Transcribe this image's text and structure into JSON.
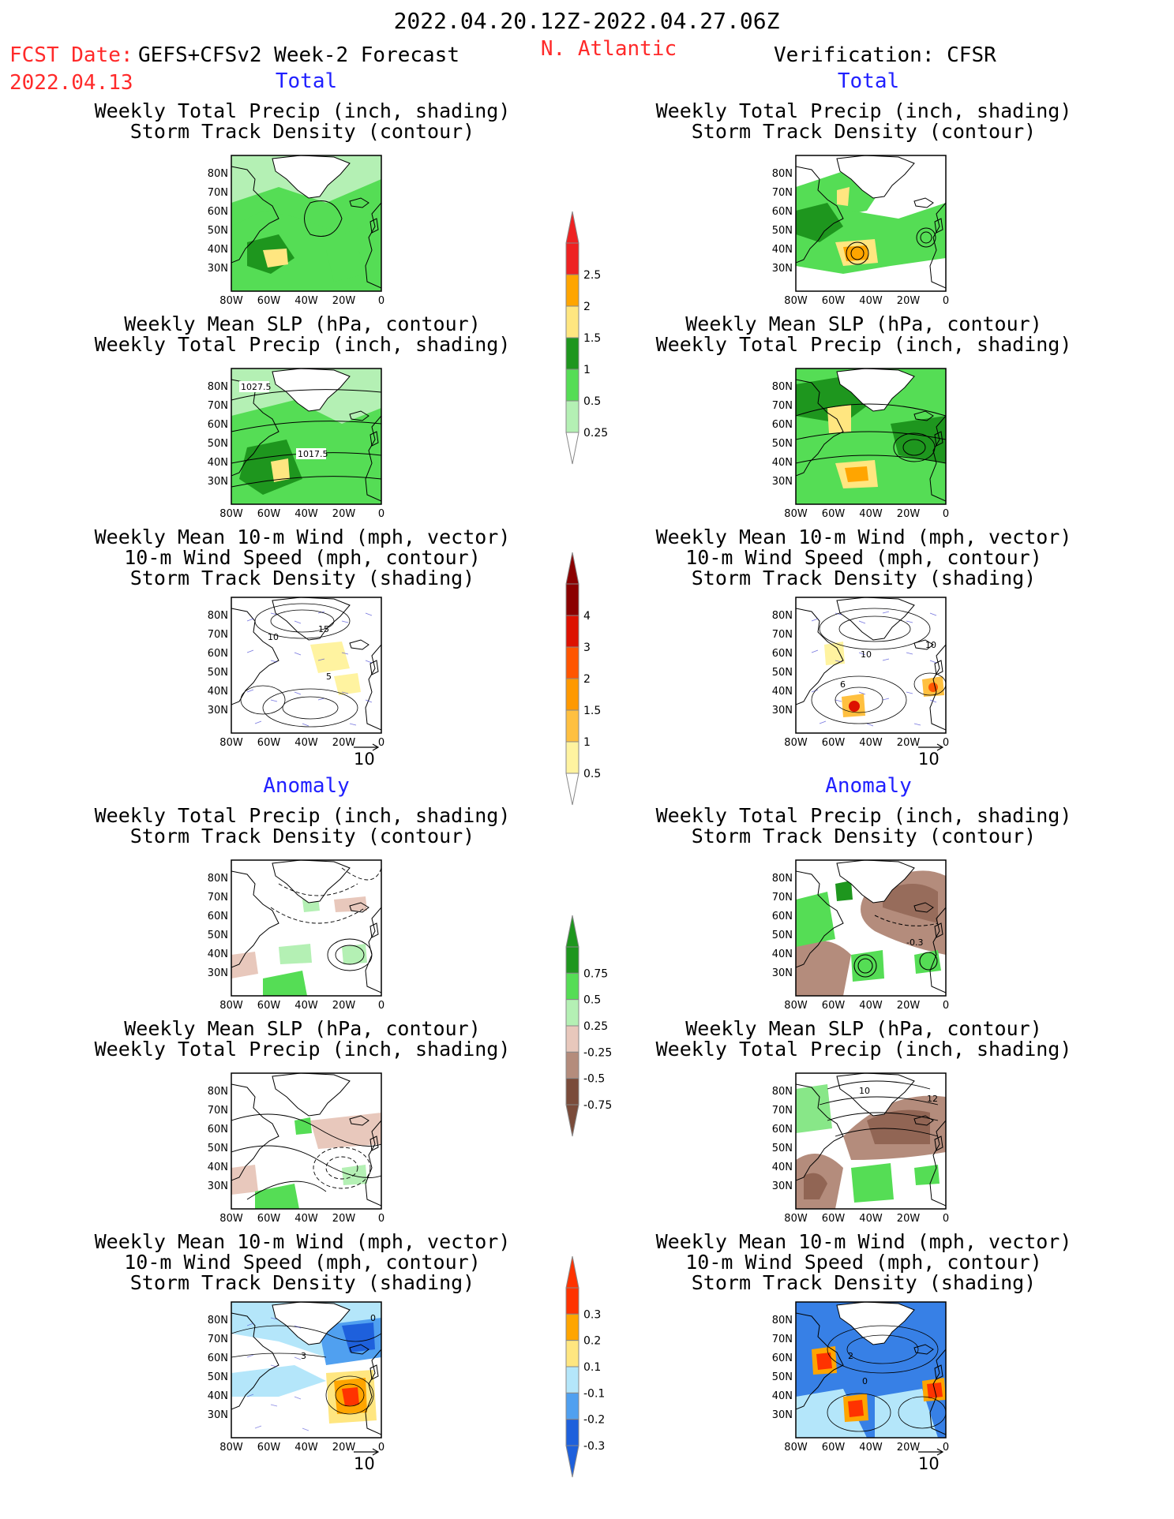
{
  "header": {
    "period": "2022.04.20.12Z-2022.04.27.06Z",
    "region": "N. Atlantic",
    "fcst_label": "FCST Date: GEFS+CFSv2 Week-2 Forecast",
    "fcst_date": "2022.04.13",
    "verif_label": "Verification: CFSR"
  },
  "sections": {
    "total": "Total",
    "anomaly": "Anomaly"
  },
  "panel_titles": {
    "precip_storm": [
      "Weekly Total Precip (inch, shading)",
      "Storm Track Density (contour)"
    ],
    "slp_precip": [
      "Weekly Mean SLP (hPa, contour)",
      "Weekly Total Precip (inch, shading)"
    ],
    "wind_storm": [
      "Weekly Mean 10-m Wind (mph, vector)",
      "10-m Wind Speed (mph, contour)",
      "Storm Track Density (shading)"
    ]
  },
  "axes": {
    "lat_ticks": [
      "80N",
      "70N",
      "60N",
      "50N",
      "40N",
      "30N"
    ],
    "lon_ticks": [
      "80W",
      "60W",
      "40W",
      "20W",
      "0"
    ]
  },
  "reference_vector": "10",
  "contour_labels": {
    "fcst_total_slp_1": "1027.5",
    "fcst_total_slp_2": "1017.5",
    "fcst_total_wind_1": "10",
    "fcst_total_wind_2": "15",
    "fcst_total_wind_3": "5",
    "verif_total_wind_1": "10",
    "verif_total_wind_2": "10",
    "verif_total_wind_3": "6",
    "verif_anom_precip_1": "-0.3",
    "verif_anom_slp_1": "10",
    "verif_anom_slp_2": "12",
    "fcst_anom_wind_1": "0",
    "fcst_anom_wind_2": "3",
    "verif_anom_wind_1": "2",
    "verif_anom_wind_2": "0"
  },
  "colorbars": {
    "precip_total": {
      "labels": [
        "2.5",
        "2",
        "1.5",
        "1",
        "0.5",
        "0.25"
      ],
      "colors": [
        "#ee2222",
        "#ffa500",
        "#ffe680",
        "#1e961e",
        "#55dd55",
        "#b4f0b4"
      ]
    },
    "storm_total": {
      "labels": [
        "4",
        "3",
        "2",
        "1.5",
        "1",
        "0.5"
      ],
      "colors": [
        "#8b0000",
        "#dd1100",
        "#ff5500",
        "#ff9900",
        "#ffc040",
        "#fff3a0"
      ]
    },
    "precip_anom": {
      "labels": [
        "0.75",
        "0.5",
        "0.25",
        "-0.25",
        "-0.5",
        "-0.75"
      ],
      "colors": [
        "#1e961e",
        "#55dd55",
        "#b4f0b4",
        "#e8c8bc",
        "#b48c7c",
        "#7a4b3a"
      ]
    },
    "storm_anom": {
      "labels": [
        "0.3",
        "0.2",
        "0.1",
        "-0.1",
        "-0.2",
        "-0.3"
      ],
      "colors": [
        "#ff3300",
        "#ffa500",
        "#ffe680",
        "#b4e6fa",
        "#50a0f0",
        "#1e60dc"
      ]
    }
  }
}
